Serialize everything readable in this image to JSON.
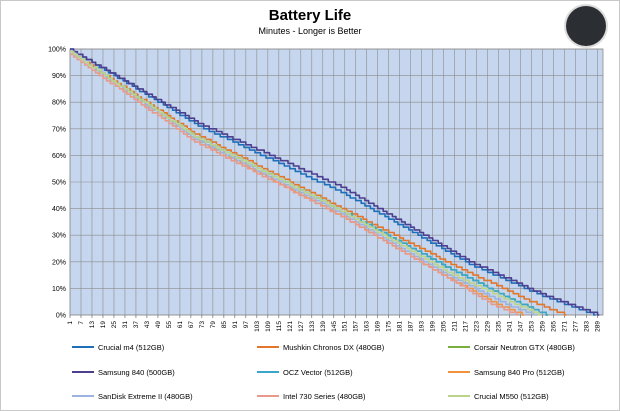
{
  "chart_data": {
    "type": "line",
    "title": "Battery Life",
    "subtitle": "Minutes - Longer is Better",
    "y_ticks": [
      "100%",
      "90%",
      "80%",
      "70%",
      "60%",
      "50%",
      "40%",
      "30%",
      "20%",
      "10%",
      "0%"
    ],
    "x_ticks": [
      "1",
      "7",
      "13",
      "19",
      "25",
      "31",
      "37",
      "43",
      "49",
      "55",
      "61",
      "67",
      "73",
      "79",
      "85",
      "91",
      "97",
      "103",
      "109",
      "115",
      "121",
      "127",
      "133",
      "139",
      "145",
      "151",
      "157",
      "163",
      "169",
      "175",
      "181",
      "187",
      "193",
      "199",
      "205",
      "211",
      "217",
      "223",
      "229",
      "235",
      "241",
      "247",
      "253",
      "259",
      "265",
      "271",
      "277",
      "283",
      "289"
    ],
    "x_range": [
      1,
      292
    ],
    "ylim": [
      0,
      100
    ],
    "grid": true,
    "legend_position": "bottom",
    "series": [
      {
        "name": "Crucial m4 (512GB)",
        "color": "#1f6fb8",
        "end": 288,
        "points": [
          [
            1,
            100
          ],
          [
            72,
            71
          ],
          [
            150,
            46
          ],
          [
            220,
            19
          ],
          [
            260,
            7
          ],
          [
            288,
            0
          ]
        ]
      },
      {
        "name": "Mushkin Chronos DX (480GB)",
        "color": "#e2762a",
        "end": 272,
        "points": [
          [
            1,
            99
          ],
          [
            70,
            68
          ],
          [
            150,
            40
          ],
          [
            210,
            19
          ],
          [
            250,
            6
          ],
          [
            272,
            0
          ]
        ]
      },
      {
        "name": "Corsair Neutron GTX (480GB)",
        "color": "#7aaf3e",
        "end": 262,
        "points": [
          [
            1,
            99
          ],
          [
            70,
            67
          ],
          [
            150,
            39
          ],
          [
            210,
            17
          ],
          [
            245,
            5
          ],
          [
            262,
            0
          ]
        ]
      },
      {
        "name": "Samsung 840 (500GB)",
        "color": "#4c3f8f",
        "end": 290,
        "points": [
          [
            1,
            100
          ],
          [
            72,
            72
          ],
          [
            150,
            48
          ],
          [
            220,
            20
          ],
          [
            262,
            7
          ],
          [
            290,
            0
          ]
        ]
      },
      {
        "name": "OCZ Vector (512GB)",
        "color": "#3aa6c9",
        "end": 262,
        "points": [
          [
            1,
            99
          ],
          [
            70,
            67
          ],
          [
            150,
            39
          ],
          [
            210,
            17
          ],
          [
            245,
            5
          ],
          [
            262,
            0
          ]
        ]
      },
      {
        "name": "Samsung 840 Pro (512GB)",
        "color": "#f0923e",
        "end": 249,
        "points": [
          [
            1,
            99
          ],
          [
            70,
            66
          ],
          [
            150,
            37
          ],
          [
            205,
            15
          ],
          [
            235,
            4
          ],
          [
            249,
            0
          ]
        ]
      },
      {
        "name": "SanDisk Extreme II (480GB)",
        "color": "#9cb3e0",
        "end": 255,
        "points": [
          [
            1,
            99
          ],
          [
            70,
            66
          ],
          [
            150,
            38
          ],
          [
            205,
            16
          ],
          [
            240,
            4
          ],
          [
            255,
            0
          ]
        ]
      },
      {
        "name": "Intel 730 Series (480GB)",
        "color": "#e89a8a",
        "end": 246,
        "points": [
          [
            1,
            98
          ],
          [
            70,
            65
          ],
          [
            150,
            37
          ],
          [
            205,
            15
          ],
          [
            232,
            4
          ],
          [
            246,
            0
          ]
        ]
      },
      {
        "name": "Crucial M550 (512GB)",
        "color": "#bcd48a",
        "end": 258,
        "points": [
          [
            1,
            99
          ],
          [
            70,
            67
          ],
          [
            150,
            39
          ],
          [
            208,
            16
          ],
          [
            242,
            5
          ],
          [
            258,
            0
          ]
        ]
      }
    ]
  }
}
